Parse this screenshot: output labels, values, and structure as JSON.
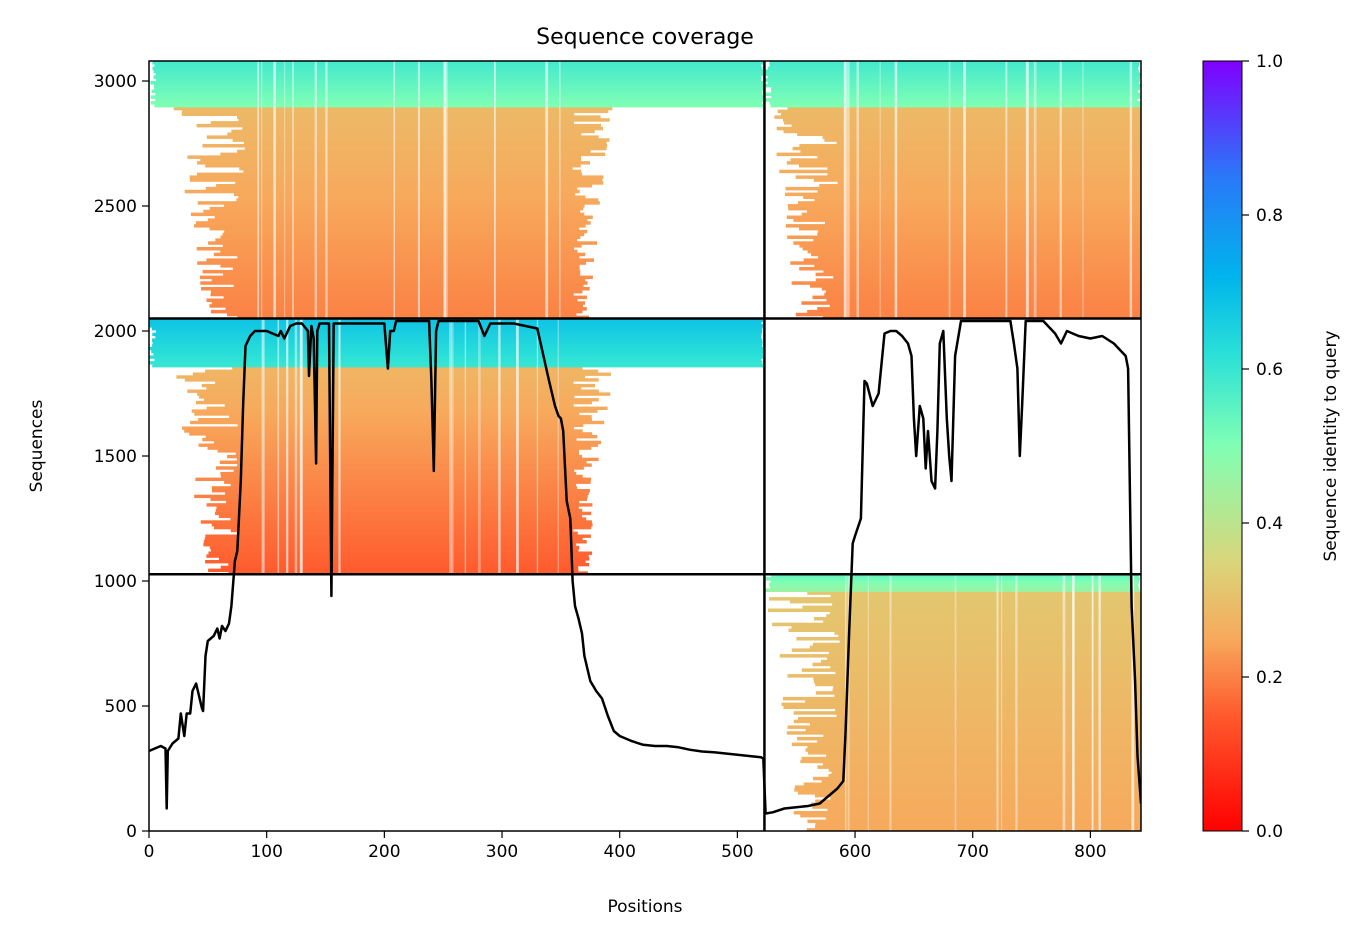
{
  "chart_data": {
    "type": "heatmap",
    "title": "Sequence coverage",
    "xlabel": "Positions",
    "ylabel": "Sequences",
    "xlim": [
      0,
      843
    ],
    "ylim": [
      0,
      3080
    ],
    "xticks": [
      0,
      100,
      200,
      300,
      400,
      500,
      600,
      700,
      800
    ],
    "yticks": [
      0,
      500,
      1000,
      1500,
      2000,
      2500,
      3000
    ],
    "colorbar": {
      "label": "Sequence identity to query",
      "ticks": [
        0.0,
        0.2,
        0.4,
        0.6,
        0.8,
        1.0
      ],
      "tick_labels": [
        "0.0",
        "0.2",
        "0.4",
        "0.6",
        "0.8",
        "1.0"
      ],
      "colormap": "rainbow_r",
      "range": [
        0.0,
        1.0
      ]
    },
    "grid": false,
    "chain_boundaries_x": [
      523
    ],
    "block_boundaries_y": [
      1027,
      2050
    ],
    "blocks": [
      {
        "x": [
          0,
          523
        ],
        "y": [
          2050,
          3080
        ],
        "full_coverage_x": [
          85,
          360
        ],
        "top_rows": [
          2900,
          3070
        ],
        "identity_top": 0.5,
        "identity_bottom": 0.2
      },
      {
        "x": [
          523,
          843
        ],
        "y": [
          2050,
          3080
        ],
        "full_coverage_x": [
          590,
          843
        ],
        "top_rows": [
          2900,
          3070
        ],
        "identity_top": 0.5,
        "identity_bottom": 0.2
      },
      {
        "x": [
          0,
          523
        ],
        "y": [
          1027,
          2050
        ],
        "full_coverage_x": [
          85,
          360
        ],
        "top_rows": [
          1860,
          2040
        ],
        "identity_top": 0.6,
        "identity_bottom": 0.15
      },
      {
        "x": [
          523,
          843
        ],
        "y": [
          0,
          1027
        ],
        "full_coverage_x": [
          590,
          843
        ],
        "top_rows": [
          960,
          1020
        ],
        "identity_top": 0.45,
        "identity_bottom": 0.25
      }
    ],
    "coverage_line": {
      "name": "",
      "color": "#000000",
      "x": [
        0,
        10,
        14,
        15,
        16,
        20,
        25,
        27,
        30,
        32,
        35,
        37,
        40,
        45,
        46,
        48,
        50,
        55,
        58,
        60,
        62,
        65,
        68,
        70,
        73,
        75,
        78,
        80,
        82,
        84,
        86,
        90,
        100,
        110,
        112,
        115,
        120,
        125,
        130,
        135,
        136,
        138,
        140,
        142,
        143,
        145,
        147,
        150,
        153,
        155,
        157,
        160,
        170,
        180,
        190,
        200,
        203,
        205,
        208,
        210,
        215,
        220,
        230,
        238,
        240,
        242,
        244,
        246,
        250,
        260,
        270,
        280,
        285,
        290,
        300,
        310,
        320,
        330,
        340,
        345,
        348,
        350,
        352,
        355,
        358,
        360,
        362,
        365,
        368,
        370,
        375,
        380,
        385,
        390,
        395,
        400,
        410,
        420,
        430,
        440,
        450,
        460,
        470,
        480,
        490,
        500,
        510,
        520,
        522,
        524,
        530,
        540,
        550,
        560,
        570,
        575,
        580,
        585,
        590,
        592,
        595,
        598,
        600,
        605,
        608,
        610,
        615,
        620,
        625,
        630,
        635,
        640,
        645,
        648,
        650,
        652,
        655,
        658,
        660,
        662,
        665,
        668,
        670,
        672,
        675,
        678,
        680,
        682,
        685,
        690,
        700,
        710,
        720,
        730,
        732,
        735,
        738,
        740,
        742,
        745,
        750,
        760,
        770,
        775,
        780,
        790,
        800,
        810,
        820,
        830,
        832,
        835,
        838,
        840,
        843
      ],
      "y": [
        320,
        340,
        330,
        90,
        320,
        350,
        370,
        470,
        380,
        470,
        470,
        560,
        590,
        490,
        480,
        700,
        760,
        780,
        810,
        770,
        820,
        800,
        830,
        900,
        1080,
        1120,
        1400,
        1700,
        1940,
        1960,
        1980,
        2000,
        2000,
        1980,
        2000,
        1970,
        2020,
        2030,
        2030,
        2000,
        1820,
        2020,
        1970,
        1470,
        2000,
        2030,
        2030,
        2030,
        2030,
        940,
        2030,
        2030,
        2030,
        2030,
        2030,
        2030,
        1850,
        2000,
        2000,
        2040,
        2040,
        2040,
        2040,
        2040,
        1800,
        1440,
        2000,
        2040,
        2040,
        2040,
        2040,
        2040,
        1980,
        2030,
        2030,
        2030,
        2020,
        2010,
        1800,
        1700,
        1660,
        1650,
        1600,
        1320,
        1250,
        1000,
        900,
        850,
        790,
        700,
        600,
        560,
        530,
        460,
        400,
        380,
        360,
        345,
        340,
        340,
        335,
        325,
        318,
        315,
        310,
        305,
        300,
        295,
        290,
        70,
        75,
        90,
        95,
        100,
        110,
        130,
        150,
        170,
        200,
        400,
        800,
        1150,
        1180,
        1250,
        1800,
        1790,
        1700,
        1750,
        1990,
        2000,
        2000,
        1980,
        1950,
        1900,
        1650,
        1500,
        1700,
        1650,
        1450,
        1600,
        1400,
        1370,
        1600,
        1950,
        2000,
        1650,
        1500,
        1400,
        1900,
        2040,
        2040,
        2040,
        2040,
        2040,
        2040,
        1950,
        1850,
        1500,
        1700,
        2040,
        2040,
        2040,
        1990,
        1950,
        2000,
        1980,
        1970,
        1980,
        1950,
        1900,
        1850,
        900,
        600,
        300,
        110
      ]
    }
  }
}
